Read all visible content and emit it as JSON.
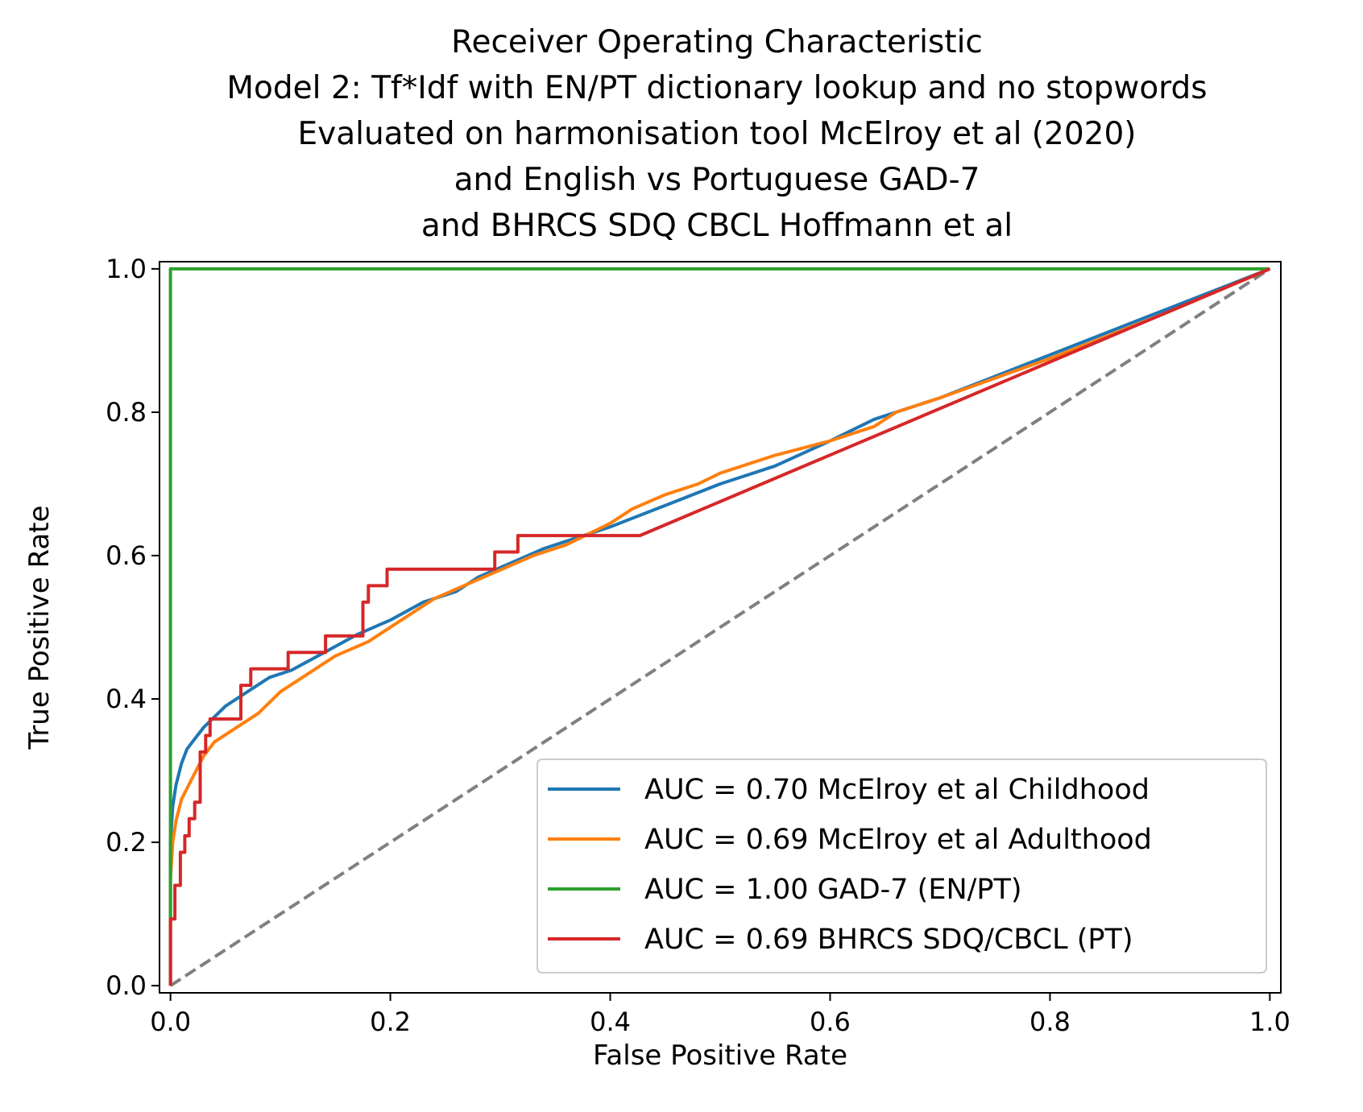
{
  "chart_data": {
    "type": "line",
    "title": [
      "Receiver Operating Characteristic",
      "Model 2: Tf*Idf with EN/PT dictionary lookup and no stopwords",
      "Evaluated on harmonisation tool McElroy et al (2020)",
      "and English vs Portuguese GAD-7",
      "and BHRCS SDQ CBCL Hoffmann et al"
    ],
    "xlabel": "False Positive Rate",
    "ylabel": "True Positive Rate",
    "xlim": [
      -0.01,
      1.01
    ],
    "ylim": [
      -0.01,
      1.01
    ],
    "xticks": [
      0.0,
      0.2,
      0.4,
      0.6,
      0.8,
      1.0
    ],
    "yticks": [
      0.0,
      0.2,
      0.4,
      0.6,
      0.8,
      1.0
    ],
    "tick_labels_x": [
      "0.0",
      "0.2",
      "0.4",
      "0.6",
      "0.8",
      "1.0"
    ],
    "tick_labels_y": [
      "0.0",
      "0.2",
      "0.4",
      "0.6",
      "0.8",
      "1.0"
    ],
    "grid": false,
    "legend_position": "lower-right",
    "series": [
      {
        "name": "AUC = 0.70 McElroy et al Childhood",
        "color": "#1f77b4",
        "step": false,
        "x": [
          0.0,
          0.0,
          0.002,
          0.005,
          0.01,
          0.015,
          0.02,
          0.03,
          0.04,
          0.05,
          0.06,
          0.07,
          0.09,
          0.11,
          0.14,
          0.17,
          0.2,
          0.23,
          0.26,
          0.28,
          0.31,
          0.34,
          0.37,
          0.4,
          0.45,
          0.5,
          0.55,
          0.6,
          0.64,
          0.7,
          0.8,
          0.9,
          1.0
        ],
        "y": [
          0.0,
          0.2,
          0.25,
          0.28,
          0.31,
          0.33,
          0.34,
          0.36,
          0.375,
          0.39,
          0.4,
          0.41,
          0.43,
          0.44,
          0.465,
          0.49,
          0.51,
          0.535,
          0.55,
          0.57,
          0.59,
          0.61,
          0.625,
          0.64,
          0.67,
          0.7,
          0.725,
          0.76,
          0.79,
          0.82,
          0.88,
          0.94,
          1.0
        ]
      },
      {
        "name": "AUC = 0.69 McElroy et al Adulthood",
        "color": "#ff7f0e",
        "step": false,
        "x": [
          0.0,
          0.0,
          0.002,
          0.005,
          0.01,
          0.02,
          0.03,
          0.04,
          0.06,
          0.08,
          0.1,
          0.12,
          0.15,
          0.18,
          0.21,
          0.24,
          0.27,
          0.3,
          0.33,
          0.36,
          0.38,
          0.4,
          0.42,
          0.45,
          0.48,
          0.5,
          0.55,
          0.6,
          0.64,
          0.66,
          0.7,
          0.8,
          0.9,
          1.0
        ],
        "y": [
          0.0,
          0.15,
          0.2,
          0.23,
          0.26,
          0.29,
          0.32,
          0.34,
          0.36,
          0.38,
          0.41,
          0.43,
          0.46,
          0.48,
          0.51,
          0.54,
          0.56,
          0.58,
          0.6,
          0.615,
          0.63,
          0.645,
          0.665,
          0.685,
          0.7,
          0.715,
          0.74,
          0.76,
          0.78,
          0.8,
          0.82,
          0.875,
          0.935,
          1.0
        ]
      },
      {
        "name": "AUC = 1.00 GAD-7 (EN/PT)",
        "color": "#2ca02c",
        "step": false,
        "x": [
          0.0,
          0.0,
          1.0
        ],
        "y": [
          0.0,
          1.0,
          1.0
        ]
      },
      {
        "name": "AUC = 0.69 BHRCS SDQ/CBCL (PT)",
        "color": "#d62728",
        "step": true,
        "x": [
          0.0,
          0.0,
          0.004,
          0.004,
          0.009,
          0.009,
          0.013,
          0.013,
          0.017,
          0.017,
          0.022,
          0.022,
          0.027,
          0.027,
          0.032,
          0.032,
          0.036,
          0.036,
          0.064,
          0.064,
          0.073,
          0.073,
          0.107,
          0.107,
          0.141,
          0.141,
          0.175,
          0.175,
          0.18,
          0.18,
          0.197,
          0.197,
          0.295,
          0.295,
          0.316,
          0.316,
          0.427,
          1.0
        ],
        "y": [
          0.0,
          0.093,
          0.093,
          0.14,
          0.14,
          0.186,
          0.186,
          0.209,
          0.209,
          0.233,
          0.233,
          0.256,
          0.256,
          0.326,
          0.326,
          0.349,
          0.349,
          0.372,
          0.372,
          0.419,
          0.419,
          0.442,
          0.442,
          0.465,
          0.465,
          0.488,
          0.488,
          0.535,
          0.535,
          0.558,
          0.558,
          0.581,
          0.581,
          0.605,
          0.605,
          0.628,
          0.628,
          1.0
        ]
      }
    ],
    "reference_line": {
      "x": [
        0.0,
        1.0
      ],
      "y": [
        0.0,
        1.0
      ],
      "color": "#808080",
      "style": "dashed"
    }
  }
}
